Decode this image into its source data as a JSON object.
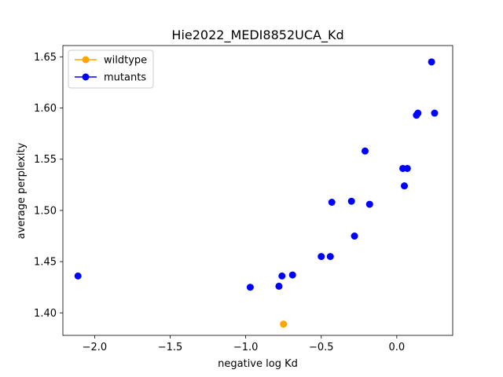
{
  "chart_data": {
    "type": "scatter",
    "title": "Hie2022_MEDI8852UCA_Kd",
    "xlabel": "negative log Kd",
    "ylabel": "average perplexity",
    "xlim": [
      -2.21,
      0.37
    ],
    "ylim": [
      1.378,
      1.661
    ],
    "xticks": [
      -2.0,
      -1.5,
      -1.0,
      -0.5,
      0.0
    ],
    "xtick_labels": [
      "−2.0",
      "−1.5",
      "−1.0",
      "−0.5",
      "0.0"
    ],
    "yticks": [
      1.4,
      1.45,
      1.5,
      1.55,
      1.6,
      1.65
    ],
    "ytick_labels": [
      "1.40",
      "1.45",
      "1.50",
      "1.55",
      "1.60",
      "1.65"
    ],
    "grid": false,
    "legend_position": "top-left",
    "series": [
      {
        "name": "wildtype",
        "color": "#ffa500",
        "points": [
          {
            "x": -0.75,
            "y": 1.389
          }
        ]
      },
      {
        "name": "mutants",
        "color": "#0000ff",
        "points": [
          {
            "x": -2.11,
            "y": 1.436
          },
          {
            "x": -0.97,
            "y": 1.425
          },
          {
            "x": -0.78,
            "y": 1.426
          },
          {
            "x": -0.76,
            "y": 1.436
          },
          {
            "x": -0.69,
            "y": 1.437
          },
          {
            "x": -0.5,
            "y": 1.455
          },
          {
            "x": -0.44,
            "y": 1.455
          },
          {
            "x": -0.43,
            "y": 1.508
          },
          {
            "x": -0.3,
            "y": 1.509
          },
          {
            "x": -0.28,
            "y": 1.475
          },
          {
            "x": -0.21,
            "y": 1.558
          },
          {
            "x": -0.18,
            "y": 1.506
          },
          {
            "x": 0.04,
            "y": 1.541
          },
          {
            "x": 0.05,
            "y": 1.524
          },
          {
            "x": 0.07,
            "y": 1.541
          },
          {
            "x": 0.13,
            "y": 1.593
          },
          {
            "x": 0.14,
            "y": 1.595
          },
          {
            "x": 0.23,
            "y": 1.645
          },
          {
            "x": 0.25,
            "y": 1.595
          }
        ]
      }
    ]
  }
}
